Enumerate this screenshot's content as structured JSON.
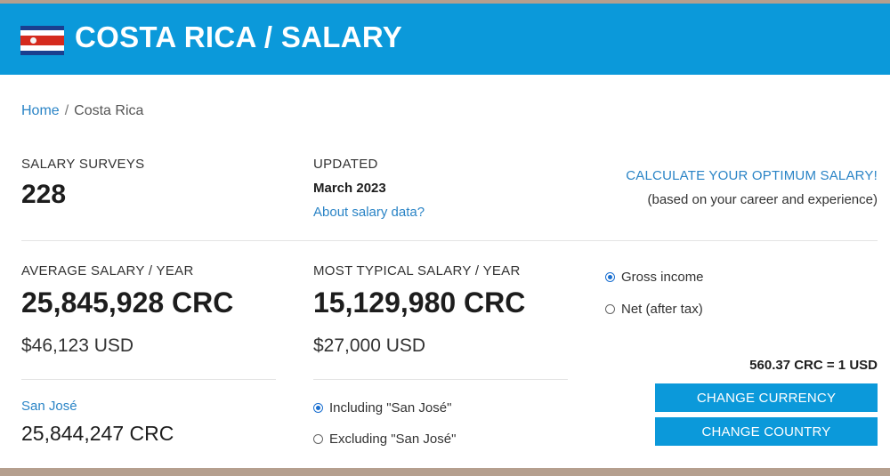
{
  "header": {
    "title": "COSTA RICA / SALARY",
    "flag_icon": "costa-rica-flag-icon",
    "color": "#0b99da"
  },
  "breadcrumb": {
    "home": "Home",
    "separator": "/",
    "current": "Costa Rica"
  },
  "surveys": {
    "label": "SALARY SURVEYS",
    "value": "228"
  },
  "updated": {
    "label": "UPDATED",
    "value": "March 2023",
    "link": "About salary data?"
  },
  "optimum": {
    "link": "CALCULATE YOUR OPTIMUM SALARY!",
    "note": "(based on your career and experience)"
  },
  "average": {
    "label": "AVERAGE SALARY / YEAR",
    "crc": "25,845,928 CRC",
    "usd": "$46,123 USD"
  },
  "typical": {
    "label": "MOST TYPICAL SALARY / YEAR",
    "crc": "15,129,980 CRC",
    "usd": "$27,000 USD"
  },
  "income_type": {
    "options": [
      {
        "label": "Gross income",
        "selected": true
      },
      {
        "label": "Net (after tax)",
        "selected": false
      }
    ]
  },
  "exchange_rate": "560.37 CRC = 1 USD",
  "city": {
    "name": "San José",
    "value": "25,844,247 CRC"
  },
  "city_filter": {
    "options": [
      {
        "label": "Including \"San José\"",
        "selected": true
      },
      {
        "label": "Excluding \"San José\"",
        "selected": false
      }
    ]
  },
  "buttons": {
    "change_currency": "CHANGE CURRENCY",
    "change_country": "CHANGE COUNTRY"
  }
}
